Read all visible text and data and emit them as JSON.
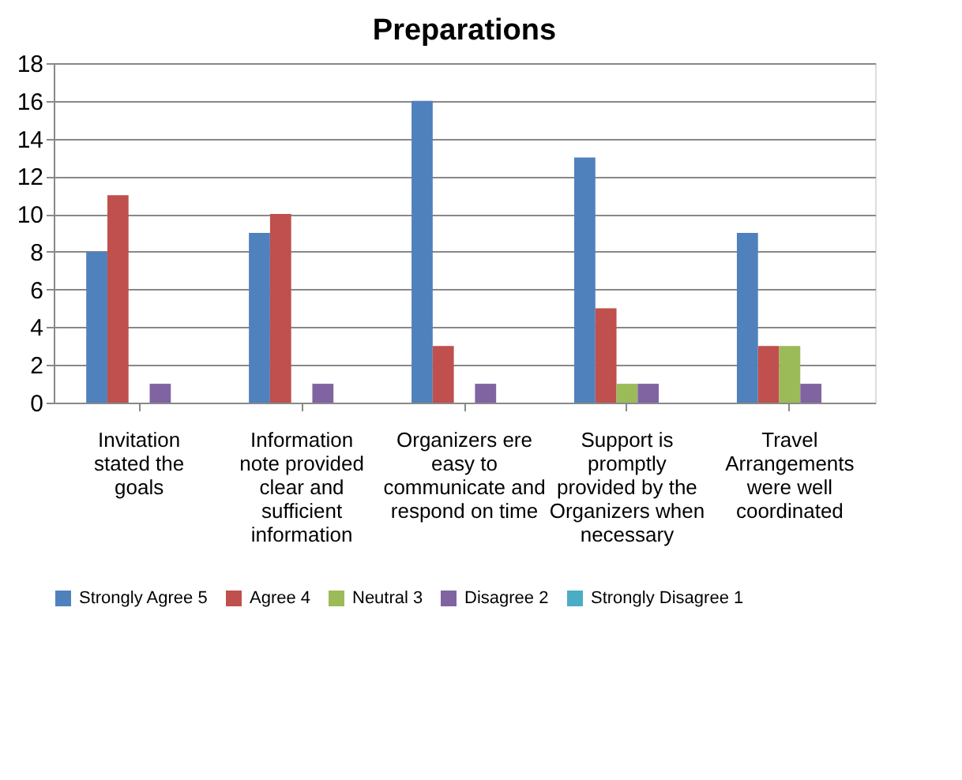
{
  "chart_data": {
    "type": "bar",
    "title": "Preparations",
    "categories": [
      "Invitation stated the goals",
      "Information note provided clear and sufficient information",
      "Organizers ere easy to communicate and respond on time",
      "Support is promptly provided by the Organizers when necessary",
      "Travel Arrangements were well coordinated"
    ],
    "series": [
      {
        "name": "Strongly Agree 5",
        "color": "#4f81bd",
        "values": [
          8,
          9,
          16,
          13,
          9
        ]
      },
      {
        "name": "Agree 4",
        "color": "#c0504d",
        "values": [
          11,
          10,
          3,
          5,
          3
        ]
      },
      {
        "name": "Neutral 3",
        "color": "#9bbb59",
        "values": [
          0,
          0,
          0,
          1,
          3
        ]
      },
      {
        "name": "Disagree 2",
        "color": "#8064a2",
        "values": [
          1,
          1,
          1,
          1,
          1
        ]
      },
      {
        "name": "Strongly Disagree 1",
        "color": "#4bacc6",
        "values": [
          0,
          0,
          0,
          0,
          0
        ]
      }
    ],
    "ylim": [
      0,
      18
    ],
    "yticks": [
      0,
      2,
      4,
      6,
      8,
      10,
      12,
      14,
      16,
      18
    ],
    "grid": "y",
    "legend": "bottom"
  }
}
